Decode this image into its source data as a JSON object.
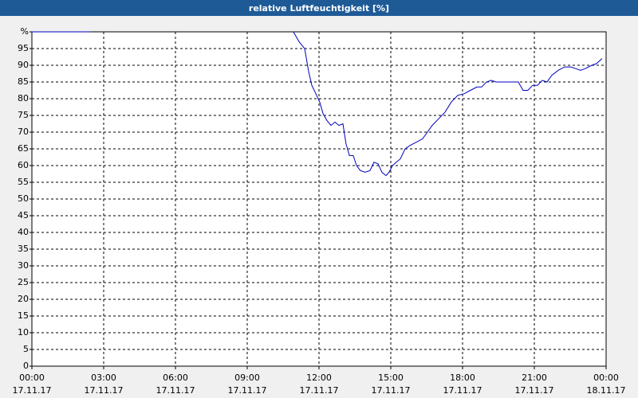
{
  "chart_data": {
    "type": "line",
    "title": "relative Luftfeuchtigkeit [%]",
    "x": [
      0,
      2.43,
      6,
      10.93,
      11.17,
      11.4,
      11.57,
      11.7,
      11.9,
      12.03,
      12.17,
      12.33,
      12.5,
      12.67,
      12.83,
      13,
      13.13,
      13.27,
      13.43,
      13.57,
      13.73,
      13.93,
      14.13,
      14.3,
      14.47,
      14.63,
      14.8,
      14.93,
      15.07,
      15.23,
      15.4,
      15.6,
      15.8,
      16.07,
      16.33,
      16.53,
      16.73,
      17,
      17.27,
      17.53,
      17.8,
      18.07,
      18.33,
      18.6,
      18.8,
      19,
      19.2,
      19.4,
      19.67,
      20,
      20.33,
      20.53,
      20.73,
      20.93,
      21.13,
      21.33,
      21.53,
      21.73,
      22,
      22.27,
      22.53,
      22.73,
      22.93,
      23.13,
      23.4,
      23.6,
      23.83
    ],
    "series": [
      {
        "name": "relative Luftfeuchtigkeit",
        "color": "#0000c0",
        "values": [
          100,
          100,
          null,
          100,
          97,
          95,
          88,
          84,
          81,
          79,
          75.5,
          73.5,
          72,
          73,
          72,
          72.5,
          66.5,
          63,
          63,
          60,
          58.5,
          58,
          58.5,
          61,
          60.5,
          58,
          57,
          58,
          60,
          61,
          62,
          65,
          66,
          67,
          68,
          70,
          72,
          74,
          76,
          79,
          81,
          81.5,
          82.5,
          83.5,
          83.5,
          85,
          85.5,
          85,
          85,
          85,
          85,
          82.5,
          82.5,
          84,
          84,
          85.5,
          85,
          87,
          88.5,
          89.5,
          89.5,
          89,
          88.5,
          89,
          90,
          90.5,
          92
        ]
      }
    ],
    "xlim": [
      0,
      24
    ],
    "ylim": [
      0,
      100
    ],
    "xticks": [
      {
        "value": 0,
        "label": "00:00"
      },
      {
        "value": 3,
        "label": "03:00"
      },
      {
        "value": 6,
        "label": "06:00"
      },
      {
        "value": 9,
        "label": "09:00"
      },
      {
        "value": 12,
        "label": "12:00"
      },
      {
        "value": 15,
        "label": "15:00"
      },
      {
        "value": 18,
        "label": "18:00"
      },
      {
        "value": 21,
        "label": "21:00"
      },
      {
        "value": 24,
        "label": "00:00"
      }
    ],
    "xtick_dates": [
      "17.11.17",
      "17.11.17",
      "17.11.17",
      "17.11.17",
      "17.11.17",
      "17.11.17",
      "17.11.17",
      "17.11.17",
      "18.11.17"
    ],
    "yticks": [
      0,
      5,
      10,
      15,
      20,
      25,
      30,
      35,
      40,
      45,
      50,
      55,
      60,
      65,
      70,
      75,
      80,
      85,
      90,
      95,
      {
        "value": 100,
        "label": "%"
      }
    ],
    "grid": true
  }
}
